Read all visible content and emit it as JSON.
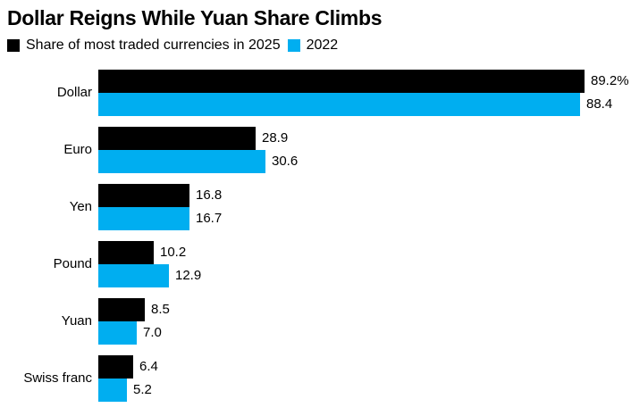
{
  "chart_data": {
    "type": "bar",
    "orientation": "horizontal",
    "title": "Dollar Reigns While Yuan Share Climbs",
    "legend": [
      {
        "label": "Share of most traded currencies in 2025",
        "color": "#000000"
      },
      {
        "label": "2022",
        "color": "#00aef0"
      }
    ],
    "categories": [
      "Dollar",
      "Euro",
      "Yen",
      "Pound",
      "Yuan",
      "Swiss franc"
    ],
    "series": [
      {
        "name": "2025",
        "color": "#000000",
        "values": [
          89.2,
          28.9,
          16.8,
          10.2,
          8.5,
          6.4
        ],
        "labels": [
          "89.2%",
          "28.9",
          "16.8",
          "10.2",
          "8.5",
          "6.4"
        ]
      },
      {
        "name": "2022",
        "color": "#00aef0",
        "values": [
          88.4,
          30.6,
          16.7,
          12.9,
          7.0,
          5.2
        ],
        "labels": [
          "88.4",
          "30.6",
          "16.7",
          "12.9",
          "7.0",
          "5.2"
        ]
      }
    ],
    "xlim": [
      0,
      100
    ],
    "unit": "%",
    "grid": "off",
    "legend_position": "top-left",
    "value_labels": "outside-end"
  }
}
